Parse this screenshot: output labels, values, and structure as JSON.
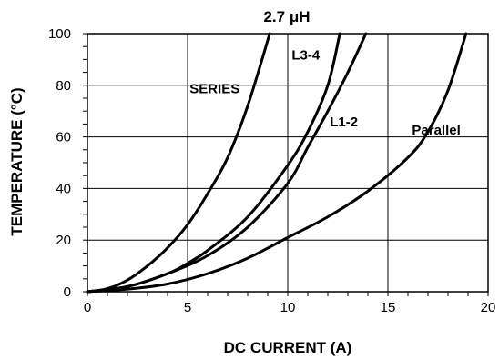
{
  "chart_data": {
    "type": "line",
    "title": "2.7 μH",
    "xlabel": "DC CURRENT (A)",
    "ylabel": "TEMPERATURE (°C)",
    "xlim": [
      0,
      20
    ],
    "ylim": [
      0,
      100
    ],
    "x_ticks": [
      "0",
      "5",
      "10",
      "15",
      "20"
    ],
    "y_ticks": [
      "0",
      "20",
      "40",
      "60",
      "80",
      "100"
    ],
    "grid": true,
    "series": [
      {
        "name": "SERIES",
        "x": [
          0,
          1,
          2,
          3,
          4,
          5,
          6,
          7,
          8,
          9.1
        ],
        "y": [
          0,
          1.2,
          4.5,
          10,
          17,
          26,
          38,
          52,
          72,
          100
        ]
      },
      {
        "name": "L3-4",
        "x": [
          0,
          2,
          4,
          5,
          6,
          8,
          10,
          11,
          12,
          12.6
        ],
        "y": [
          0,
          2,
          7,
          11,
          16,
          29,
          49,
          62,
          80,
          100
        ]
      },
      {
        "name": "L1-2",
        "x": [
          0,
          2,
          4,
          6,
          8,
          10,
          11,
          12,
          13,
          13.9
        ],
        "y": [
          0,
          2,
          7,
          14,
          25,
          42,
          56,
          70,
          85,
          100
        ]
      },
      {
        "name": "Parallel",
        "x": [
          0,
          2,
          4,
          6,
          8,
          10,
          12,
          14,
          16,
          17,
          18,
          18.9
        ],
        "y": [
          0,
          1,
          3,
          7,
          13,
          21,
          29,
          39,
          52,
          62,
          78,
          100
        ]
      }
    ]
  }
}
